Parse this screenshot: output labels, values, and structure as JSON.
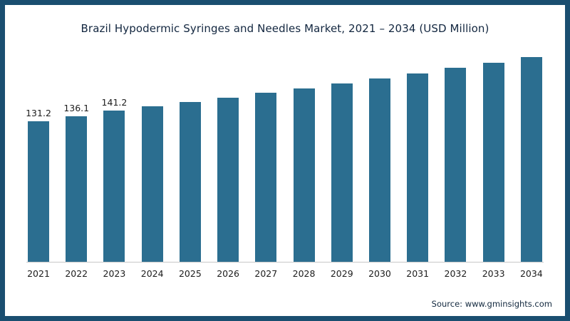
{
  "chart": {
    "title": "Brazil Hypodermic Syringes and Needles Market, 2021 – 2034 (USD Million)",
    "source": "Source: www.gminsights.com"
  },
  "colors": {
    "frame_border": "#1a4e70",
    "bar_fill": "#2b6e90",
    "title_text": "#12263f",
    "axis_line": "#c8c8c8"
  },
  "chart_data": {
    "type": "bar",
    "title": "Brazil Hypodermic Syringes and Needles Market, 2021 – 2034 (USD Million)",
    "categories": [
      "2021",
      "2022",
      "2023",
      "2024",
      "2025",
      "2026",
      "2027",
      "2028",
      "2029",
      "2030",
      "2031",
      "2032",
      "2033",
      "2034"
    ],
    "values": [
      131.2,
      136.1,
      141.2,
      145.2,
      149.3,
      153.5,
      157.8,
      162.2,
      166.7,
      171.4,
      176.2,
      181.1,
      186.2,
      191.4
    ],
    "data_labels": [
      "131.2",
      "136.1",
      "141.2",
      "",
      "",
      "",
      "",
      "",
      "",
      "",
      "",
      "",
      "",
      ""
    ],
    "xlabel": "",
    "ylabel": "",
    "ylim": [
      0,
      200
    ],
    "grid": false,
    "legend": false,
    "bar_color": "#2b6e90"
  }
}
